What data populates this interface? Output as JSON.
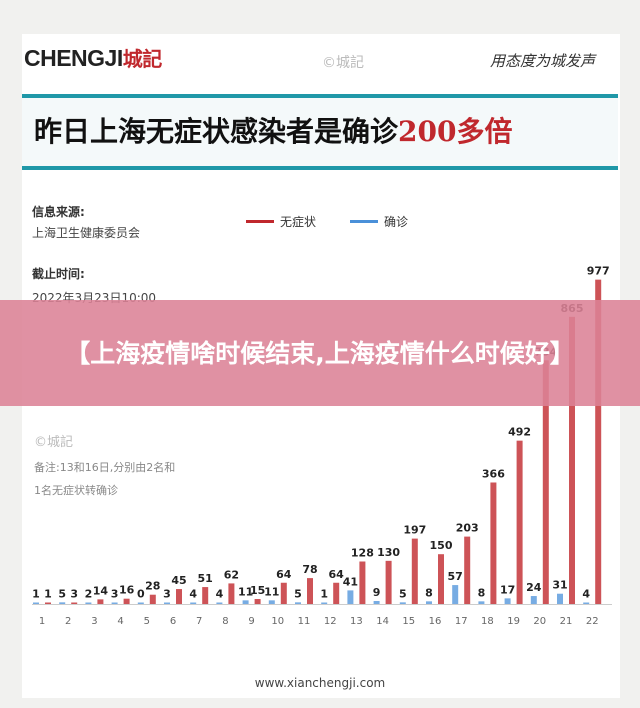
{
  "header": {
    "logo_text": "CHENGJI",
    "logo_cn": "城記",
    "watermark": "©城記",
    "slogan": "用态度为城发声"
  },
  "headline": {
    "prefix": "昨日上海无症状感染者是确诊",
    "highlight": "200多倍"
  },
  "meta": {
    "source_label": "信息来源:",
    "source_value": "上海卫生健康委员会",
    "cutoff_label": "截止时间:",
    "cutoff_value": "2022年3月23日10:00"
  },
  "notes": {
    "watermark": "©城記",
    "line1": "备注:13和16日,分别由2名和",
    "line2": "1名无症状转确诊"
  },
  "banner": {
    "title": "【上海疫情啥时候结束,上海疫情什么时候好】"
  },
  "footer": {
    "url": "www.xianchengji.com"
  },
  "colors": {
    "asymptomatic": "#c0282d",
    "confirmed": "#4a90d9",
    "accent": "#1f98a8"
  },
  "chart_data": {
    "type": "bar",
    "categories": [
      "1",
      "2",
      "3",
      "4",
      "5",
      "6",
      "7",
      "8",
      "9",
      "10",
      "11",
      "12",
      "13",
      "14",
      "15",
      "16",
      "17",
      "18",
      "19",
      "20",
      "21",
      "22"
    ],
    "series": [
      {
        "name": "无症状",
        "values": [
          1,
          3,
          14,
          16,
          28,
          45,
          51,
          62,
          15,
          64,
          78,
          64,
          128,
          130,
          197,
          150,
          203,
          366,
          492,
          734,
          865,
          977
        ]
      },
      {
        "name": "确诊",
        "values": [
          1,
          5,
          2,
          3,
          0,
          3,
          4,
          4,
          11,
          11,
          5,
          1,
          41,
          9,
          5,
          8,
          57,
          8,
          17,
          24,
          31,
          4
        ]
      }
    ],
    "title": "",
    "xlabel": "",
    "ylabel": "",
    "ylim": [
      0,
      1000
    ],
    "legend_position": "top",
    "grid": false
  }
}
